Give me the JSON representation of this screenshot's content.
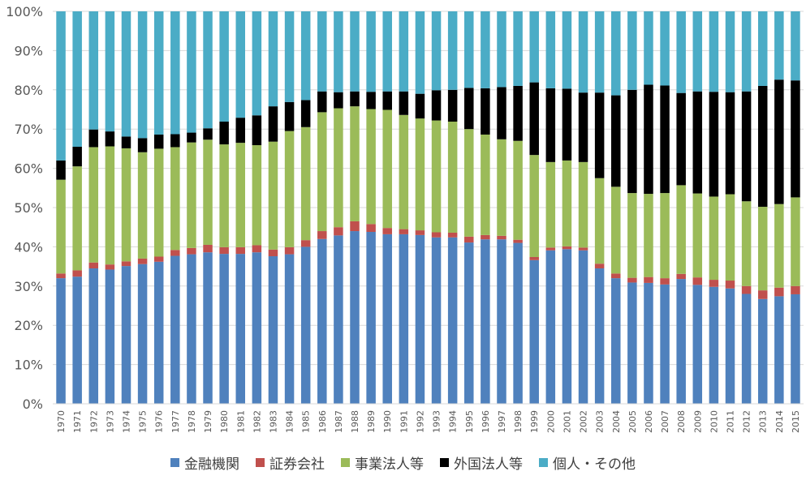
{
  "chart_data": {
    "type": "bar",
    "stacked": true,
    "percent": true,
    "ylim": [
      0,
      100
    ],
    "yticks": [
      "0%",
      "10%",
      "20%",
      "30%",
      "40%",
      "50%",
      "60%",
      "70%",
      "80%",
      "90%",
      "100%"
    ],
    "grid": true,
    "legend_position": "bottom",
    "categories": [
      "1970",
      "1971",
      "1972",
      "1973",
      "1974",
      "1975",
      "1976",
      "1977",
      "1978",
      "1979",
      "1980",
      "1981",
      "1982",
      "1983",
      "1984",
      "1985",
      "1986",
      "1987",
      "1988",
      "1989",
      "1990",
      "1991",
      "1992",
      "1993",
      "1994",
      "1995",
      "1996",
      "1997",
      "1998",
      "1999",
      "2000",
      "2001",
      "2002",
      "2003",
      "2004",
      "2005",
      "2006",
      "2007",
      "2008",
      "2009",
      "2010",
      "2011",
      "2012",
      "2013",
      "2014",
      "2015"
    ],
    "series": [
      {
        "name": "金融機関",
        "color": "#4F81BD",
        "values": [
          32.0,
          32.4,
          34.5,
          34.2,
          35.1,
          35.6,
          36.2,
          37.7,
          38.1,
          38.6,
          38.2,
          38.2,
          38.6,
          37.6,
          38.1,
          40.0,
          42.0,
          42.9,
          44.0,
          43.8,
          43.2,
          43.2,
          43.0,
          42.4,
          42.4,
          41.1,
          41.9,
          41.9,
          41.0,
          36.6,
          39.1,
          39.4,
          39.1,
          34.5,
          32.0,
          30.9,
          30.8,
          30.4,
          31.8,
          30.3,
          29.8,
          29.4,
          28.0,
          26.7,
          27.4,
          27.9
        ]
      },
      {
        "name": "証券会社",
        "color": "#C0504D",
        "values": [
          1.2,
          1.6,
          1.5,
          1.3,
          1.2,
          1.4,
          1.3,
          1.5,
          1.6,
          1.9,
          1.7,
          1.7,
          1.8,
          1.7,
          1.8,
          1.7,
          2.0,
          2.1,
          2.5,
          2.0,
          1.6,
          1.3,
          1.2,
          1.3,
          1.2,
          1.5,
          1.1,
          0.9,
          0.8,
          0.8,
          0.7,
          0.7,
          0.7,
          1.2,
          1.2,
          1.2,
          1.5,
          1.6,
          1.3,
          1.9,
          1.8,
          2.0,
          2.0,
          2.2,
          2.2,
          2.1
        ]
      },
      {
        "name": "事業法人等",
        "color": "#9BBB59",
        "values": [
          23.9,
          26.5,
          29.4,
          30.1,
          28.8,
          27.1,
          27.5,
          26.2,
          26.9,
          26.8,
          26.2,
          26.6,
          25.5,
          27.5,
          29.6,
          28.8,
          30.3,
          30.3,
          29.3,
          29.3,
          30.1,
          29.1,
          28.5,
          28.5,
          28.3,
          27.4,
          25.6,
          24.6,
          25.2,
          26.0,
          21.8,
          21.9,
          21.8,
          21.8,
          22.1,
          21.6,
          21.2,
          21.7,
          22.6,
          21.4,
          21.2,
          22.0,
          21.6,
          21.3,
          21.3,
          22.6
        ]
      },
      {
        "name": "外国法人等",
        "color": "#000000",
        "values": [
          4.9,
          5.0,
          4.5,
          3.8,
          3.0,
          3.6,
          3.6,
          3.3,
          2.5,
          2.9,
          5.8,
          6.4,
          7.6,
          9.0,
          7.4,
          6.9,
          5.3,
          4.1,
          3.8,
          4.4,
          4.7,
          6.0,
          6.3,
          7.7,
          8.1,
          10.5,
          11.8,
          13.3,
          14.0,
          18.5,
          18.8,
          18.3,
          17.7,
          21.8,
          23.3,
          26.3,
          27.8,
          27.4,
          23.5,
          26.0,
          26.7,
          26.0,
          28.0,
          30.8,
          31.7,
          29.8
        ]
      },
      {
        "name": "個人・その他",
        "color": "#4BACC6",
        "values": [
          38.0,
          34.5,
          30.1,
          30.6,
          31.9,
          32.3,
          31.4,
          31.3,
          30.9,
          29.8,
          28.1,
          27.1,
          26.5,
          24.2,
          23.1,
          22.6,
          20.4,
          20.6,
          20.4,
          20.5,
          20.4,
          20.4,
          21.0,
          20.1,
          20.0,
          19.5,
          19.6,
          19.3,
          19.0,
          18.1,
          19.6,
          19.7,
          20.7,
          20.7,
          21.4,
          20.0,
          18.7,
          18.9,
          20.8,
          20.4,
          20.5,
          20.6,
          20.4,
          19.0,
          17.4,
          17.6
        ]
      }
    ]
  }
}
